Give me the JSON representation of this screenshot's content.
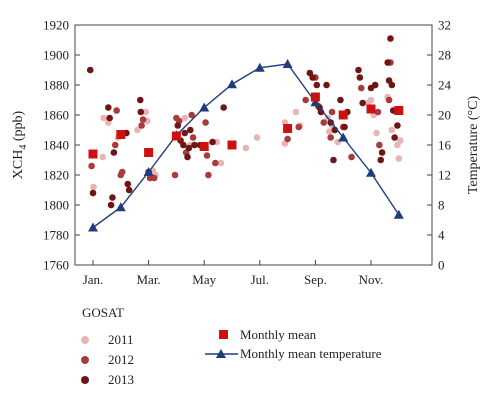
{
  "chart_data": {
    "type": "scatter",
    "x_ticks": [
      "Jan.",
      "Mar.",
      "May",
      "Jul.",
      "Sep.",
      "Nov."
    ],
    "y_left": {
      "label_main": "XCH",
      "label_sub": "4",
      "label_unit": " (ppb)",
      "range": [
        1760,
        1920
      ],
      "ticks": [
        "1760",
        "1780",
        "1800",
        "1820",
        "1840",
        "1860",
        "1880",
        "1900",
        "1920"
      ]
    },
    "y_right": {
      "label": "Temperature (°C)",
      "range": [
        0,
        32
      ],
      "ticks": [
        "0",
        "4",
        "8",
        "12",
        "16",
        "20",
        "24",
        "28",
        "32"
      ]
    },
    "colors": {
      "c2011": "#e8b4b4",
      "c2012": "#a83c3c",
      "c2013": "#6e1616",
      "monthly_mean": "#cc1111",
      "temperature": "#1f3d7a",
      "frame": "#444444"
    },
    "series": [
      {
        "name": "2011",
        "points": [
          [
            0.02,
            1812
          ],
          [
            0.35,
            1832
          ],
          [
            0.38,
            1858
          ],
          [
            0.55,
            1855
          ],
          [
            0.9,
            1845
          ],
          [
            1.6,
            1850
          ],
          [
            1.9,
            1862
          ],
          [
            1.95,
            1856
          ],
          [
            2.15,
            1823
          ],
          [
            2.25,
            1820
          ],
          [
            3.3,
            1858
          ],
          [
            3.5,
            1840
          ],
          [
            4.45,
            1842
          ],
          [
            4.6,
            1828
          ],
          [
            5.5,
            1838
          ],
          [
            5.9,
            1845
          ],
          [
            6.9,
            1841
          ],
          [
            6.9,
            1855
          ],
          [
            6.95,
            1850
          ],
          [
            7.3,
            1862
          ],
          [
            7.45,
            1853
          ],
          [
            8.45,
            1858
          ],
          [
            8.5,
            1849
          ],
          [
            8.6,
            1853
          ],
          [
            8.8,
            1842
          ],
          [
            9.9,
            1868
          ],
          [
            10.0,
            1870
          ],
          [
            10.1,
            1860
          ],
          [
            10.2,
            1848
          ],
          [
            10.6,
            1872
          ],
          [
            10.95,
            1840
          ],
          [
            11.0,
            1831
          ],
          [
            11.05,
            1843
          ],
          [
            10.75,
            1850
          ]
        ]
      },
      {
        "name": "2012",
        "points": [
          [
            -0.05,
            1826
          ],
          [
            0.8,
            1840
          ],
          [
            0.85,
            1863
          ],
          [
            1.0,
            1820
          ],
          [
            1.05,
            1822
          ],
          [
            1.75,
            1853
          ],
          [
            1.8,
            1857
          ],
          [
            2.05,
            1818
          ],
          [
            2.2,
            1818
          ],
          [
            2.95,
            1820
          ],
          [
            3.0,
            1858
          ],
          [
            3.1,
            1856
          ],
          [
            3.35,
            1835
          ],
          [
            3.55,
            1860
          ],
          [
            3.6,
            1845
          ],
          [
            4.05,
            1855
          ],
          [
            4.1,
            1833
          ],
          [
            4.15,
            1820
          ],
          [
            4.4,
            1828
          ],
          [
            7.0,
            1844
          ],
          [
            7.4,
            1852
          ],
          [
            7.65,
            1870
          ],
          [
            8.0,
            1885
          ],
          [
            8.1,
            1866
          ],
          [
            8.3,
            1855
          ],
          [
            8.55,
            1845
          ],
          [
            8.6,
            1862
          ],
          [
            9.0,
            1852
          ],
          [
            9.3,
            1832
          ],
          [
            9.65,
            1878
          ],
          [
            10.25,
            1862
          ],
          [
            10.3,
            1840
          ],
          [
            10.65,
            1870
          ],
          [
            10.7,
            1895
          ]
        ]
      },
      {
        "name": "2013",
        "points": [
          [
            -0.1,
            1890
          ],
          [
            0.0,
            1808
          ],
          [
            0.55,
            1865
          ],
          [
            0.6,
            1858
          ],
          [
            0.65,
            1800
          ],
          [
            0.7,
            1805
          ],
          [
            0.75,
            1835
          ],
          [
            1.2,
            1848
          ],
          [
            1.25,
            1814
          ],
          [
            1.3,
            1810
          ],
          [
            1.7,
            1870
          ],
          [
            1.72,
            1862
          ],
          [
            2.0,
            1822
          ],
          [
            3.05,
            1853
          ],
          [
            3.15,
            1843
          ],
          [
            3.25,
            1840
          ],
          [
            3.3,
            1848
          ],
          [
            3.4,
            1832
          ],
          [
            3.45,
            1838
          ],
          [
            3.5,
            1850
          ],
          [
            3.65,
            1840
          ],
          [
            3.85,
            1840
          ],
          [
            4.3,
            1842
          ],
          [
            4.7,
            1865
          ],
          [
            7.8,
            1888
          ],
          [
            7.9,
            1885
          ],
          [
            8.05,
            1880
          ],
          [
            8.15,
            1865
          ],
          [
            8.2,
            1862
          ],
          [
            8.4,
            1880
          ],
          [
            8.55,
            1855
          ],
          [
            8.65,
            1830
          ],
          [
            8.7,
            1850
          ],
          [
            8.9,
            1870
          ],
          [
            9.05,
            1852
          ],
          [
            9.15,
            1862
          ],
          [
            9.55,
            1890
          ],
          [
            9.6,
            1885
          ],
          [
            9.7,
            1868
          ],
          [
            10.0,
            1878
          ],
          [
            10.15,
            1880
          ],
          [
            10.35,
            1830
          ],
          [
            10.4,
            1835
          ],
          [
            10.6,
            1895
          ],
          [
            10.65,
            1883
          ],
          [
            10.7,
            1911
          ],
          [
            10.75,
            1880
          ],
          [
            10.8,
            1863
          ],
          [
            10.85,
            1845
          ],
          [
            10.95,
            1853
          ]
        ]
      }
    ],
    "monthly_mean": {
      "name": "Monthly mean",
      "points": [
        [
          0,
          1834
        ],
        [
          1,
          1847
        ],
        [
          2,
          1835
        ],
        [
          3,
          1846
        ],
        [
          4,
          1839
        ],
        [
          5,
          1840
        ],
        [
          7,
          1851
        ],
        [
          8,
          1872
        ],
        [
          9,
          1860
        ],
        [
          10,
          1864
        ],
        [
          11,
          1863
        ]
      ]
    },
    "temperature": {
      "name": "Monthly mean temperature",
      "points": [
        [
          0,
          5.0
        ],
        [
          1,
          7.7
        ],
        [
          2,
          12.4
        ],
        [
          3,
          17.3
        ],
        [
          4,
          21.0
        ],
        [
          5,
          24.1
        ],
        [
          6,
          26.3
        ],
        [
          7,
          26.8
        ],
        [
          8,
          21.7
        ],
        [
          9,
          17.0
        ],
        [
          10,
          12.3
        ],
        [
          11,
          6.7
        ]
      ]
    }
  },
  "legend": {
    "title": "GOSAT",
    "year_2011": "2011",
    "year_2012": "2012",
    "year_2013": "2013",
    "monthly_mean": "Monthly mean",
    "monthly_mean_temperature": "Monthly mean temperature"
  }
}
